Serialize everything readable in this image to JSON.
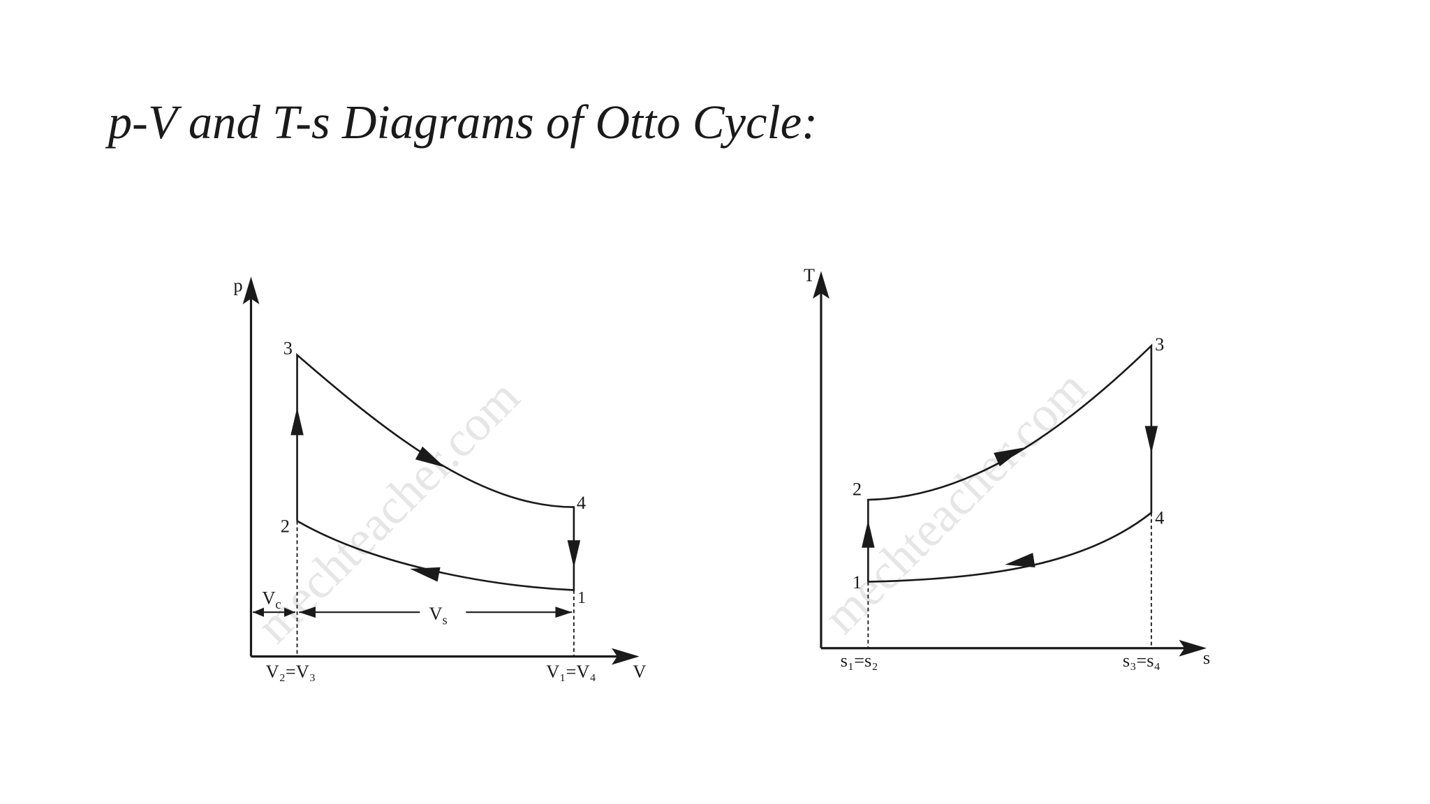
{
  "title": "p-V and T-s Diagrams of Otto Cycle:",
  "pv_diagram": {
    "y_axis_label": "p",
    "x_axis_label": "V",
    "states": [
      "1",
      "2",
      "3",
      "4"
    ],
    "clearance_volume": {
      "main": "V",
      "sub": "c"
    },
    "swept_volume": {
      "main": "V",
      "sub": "s"
    },
    "left_volume": "V₂=V₃",
    "right_volume": "V₁=V₄",
    "watermark": "mechteacher.com"
  },
  "ts_diagram": {
    "y_axis_label": "T",
    "x_axis_label": "s",
    "states": [
      "1",
      "2",
      "3",
      "4"
    ],
    "left_entropy": "s₁=s₂",
    "right_entropy": "s₃=s₄",
    "watermark": "mechteacher.com"
  }
}
